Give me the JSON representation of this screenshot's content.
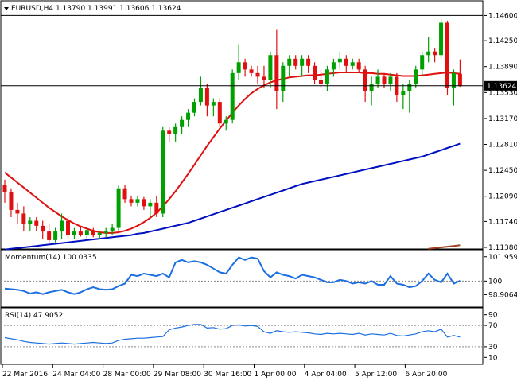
{
  "chart_data": [
    {
      "type": "candlestick",
      "symbol_header": "EURUSD,H4  1.13790 1.13991 1.13606 1.13624",
      "current_price_label": "1.13624",
      "current_price": 1.13624,
      "top_line_price": 1.146,
      "ylim": [
        1.1138,
        1.1466
      ],
      "y_ticks": [
        {
          "value": 1.146,
          "label": "1.14600"
        },
        {
          "value": 1.1425,
          "label": "1.14250"
        },
        {
          "value": 1.1389,
          "label": "1.13890"
        },
        {
          "value": 1.1353,
          "label": "1.13530"
        },
        {
          "value": 1.1317,
          "label": "1.13170"
        },
        {
          "value": 1.1281,
          "label": "1.12810"
        },
        {
          "value": 1.1245,
          "label": "1.12450"
        },
        {
          "value": 1.1209,
          "label": "1.12090"
        },
        {
          "value": 1.1174,
          "label": "1.11740"
        },
        {
          "value": 1.1138,
          "label": "1.11380"
        }
      ],
      "x_labels": [
        "22 Mar 2016",
        "24 Mar 04:00",
        "28 Mar 00:00",
        "29 Mar 08:00",
        "30 Mar 16:00",
        "1 Apr 00:00",
        "4 Apr 04:00",
        "5 Apr 12:00",
        "6 Apr 20:00"
      ],
      "candles": [
        [
          1.1225,
          1.1232,
          1.12,
          1.1215
        ],
        [
          1.1215,
          1.122,
          1.118,
          1.119
        ],
        [
          1.119,
          1.12,
          1.117,
          1.1185
        ],
        [
          1.1185,
          1.1195,
          1.116,
          1.117
        ],
        [
          1.117,
          1.118,
          1.116,
          1.1175
        ],
        [
          1.1175,
          1.118,
          1.116,
          1.1168
        ],
        [
          1.1168,
          1.1175,
          1.115,
          1.116
        ],
        [
          1.116,
          1.117,
          1.1145,
          1.1148
        ],
        [
          1.1148,
          1.1165,
          1.1145,
          1.116
        ],
        [
          1.116,
          1.1185,
          1.115,
          1.1175
        ],
        [
          1.1175,
          1.118,
          1.115,
          1.1155
        ],
        [
          1.1155,
          1.1165,
          1.115,
          1.116
        ],
        [
          1.116,
          1.1168,
          1.1153,
          1.1155
        ],
        [
          1.1155,
          1.1165,
          1.115,
          1.1162
        ],
        [
          1.1162,
          1.1165,
          1.1152,
          1.1155
        ],
        [
          1.1155,
          1.116,
          1.115,
          1.1158
        ],
        [
          1.1158,
          1.1165,
          1.1152,
          1.116
        ],
        [
          1.116,
          1.117,
          1.1155,
          1.1165
        ],
        [
          1.1165,
          1.1225,
          1.116,
          1.122
        ],
        [
          1.122,
          1.1225,
          1.12,
          1.1205
        ],
        [
          1.1205,
          1.121,
          1.1195,
          1.12
        ],
        [
          1.12,
          1.121,
          1.1195,
          1.1205
        ],
        [
          1.1205,
          1.1208,
          1.119,
          1.1195
        ],
        [
          1.1195,
          1.1205,
          1.118,
          1.12
        ],
        [
          1.12,
          1.121,
          1.118,
          1.1185
        ],
        [
          1.1185,
          1.1305,
          1.118,
          1.13
        ],
        [
          1.13,
          1.1305,
          1.1285,
          1.1295
        ],
        [
          1.1295,
          1.131,
          1.1285,
          1.1305
        ],
        [
          1.1305,
          1.132,
          1.1295,
          1.1315
        ],
        [
          1.1315,
          1.133,
          1.1305,
          1.1325
        ],
        [
          1.1325,
          1.1345,
          1.132,
          1.134
        ],
        [
          1.134,
          1.1375,
          1.1335,
          1.136
        ],
        [
          1.136,
          1.1365,
          1.132,
          1.1335
        ],
        [
          1.1335,
          1.1345,
          1.132,
          1.134
        ],
        [
          1.134,
          1.1345,
          1.1305,
          1.131
        ],
        [
          1.131,
          1.132,
          1.13,
          1.1315
        ],
        [
          1.1315,
          1.1385,
          1.131,
          1.138
        ],
        [
          1.138,
          1.142,
          1.137,
          1.1395
        ],
        [
          1.1395,
          1.14,
          1.1375,
          1.1385
        ],
        [
          1.1385,
          1.139,
          1.1375,
          1.138
        ],
        [
          1.138,
          1.139,
          1.1365,
          1.1375
        ],
        [
          1.1375,
          1.139,
          1.136,
          1.137
        ],
        [
          1.137,
          1.141,
          1.136,
          1.1405
        ],
        [
          1.1405,
          1.144,
          1.133,
          1.1355
        ],
        [
          1.1355,
          1.1395,
          1.134,
          1.139
        ],
        [
          1.139,
          1.1405,
          1.1375,
          1.14
        ],
        [
          1.14,
          1.1405,
          1.1385,
          1.139
        ],
        [
          1.139,
          1.1405,
          1.1375,
          1.14
        ],
        [
          1.14,
          1.1405,
          1.138,
          1.139
        ],
        [
          1.139,
          1.1395,
          1.1365,
          1.137
        ],
        [
          1.137,
          1.1385,
          1.136,
          1.1365
        ],
        [
          1.1365,
          1.139,
          1.1355,
          1.1385
        ],
        [
          1.1385,
          1.14,
          1.1375,
          1.1395
        ],
        [
          1.1395,
          1.141,
          1.1385,
          1.14
        ],
        [
          1.14,
          1.1405,
          1.138,
          1.139
        ],
        [
          1.139,
          1.14,
          1.1385,
          1.1395
        ],
        [
          1.1395,
          1.14,
          1.138,
          1.1385
        ],
        [
          1.1385,
          1.139,
          1.134,
          1.1355
        ],
        [
          1.1355,
          1.1375,
          1.1335,
          1.1365
        ],
        [
          1.1365,
          1.1385,
          1.136,
          1.1375
        ],
        [
          1.1375,
          1.138,
          1.136,
          1.1365
        ],
        [
          1.1365,
          1.138,
          1.1355,
          1.1375
        ],
        [
          1.1375,
          1.138,
          1.134,
          1.135
        ],
        [
          1.135,
          1.1365,
          1.133,
          1.1355
        ],
        [
          1.1355,
          1.137,
          1.1325,
          1.1365
        ],
        [
          1.1365,
          1.139,
          1.136,
          1.1385
        ],
        [
          1.1385,
          1.141,
          1.1375,
          1.1405
        ],
        [
          1.1405,
          1.143,
          1.1395,
          1.141
        ],
        [
          1.141,
          1.1415,
          1.1395,
          1.1405
        ],
        [
          1.1405,
          1.1455,
          1.14,
          1.145
        ],
        [
          1.145,
          1.1452,
          1.135,
          1.136
        ],
        [
          1.136,
          1.1385,
          1.1335,
          1.138
        ],
        [
          1.1379,
          1.1399,
          1.1361,
          1.1362
        ]
      ],
      "ma_red": [
        1.1242,
        1.1235,
        1.1228,
        1.1221,
        1.1214,
        1.1207,
        1.12,
        1.1193,
        1.1187,
        1.1181,
        1.1176,
        1.1171,
        1.1167,
        1.1164,
        1.1161,
        1.1159,
        1.1158,
        1.1158,
        1.1159,
        1.1161,
        1.1164,
        1.1168,
        1.1173,
        1.1179,
        1.1186,
        1.1195,
        1.1205,
        1.1216,
        1.1228,
        1.124,
        1.1253,
        1.1266,
        1.1279,
        1.1291,
        1.1303,
        1.1314,
        1.1325,
        1.1335,
        1.1344,
        1.1352,
        1.1358,
        1.1363,
        1.1367,
        1.137,
        1.1372,
        1.1374,
        1.1375,
        1.1376,
        1.1377,
        1.1377,
        1.1378,
        1.1379,
        1.138,
        1.1381,
        1.1381,
        1.1381,
        1.1381,
        1.138,
        1.138,
        1.1379,
        1.1379,
        1.1378,
        1.1377,
        1.1376,
        1.1376,
        1.1376,
        1.1377,
        1.1378,
        1.1379,
        1.138,
        1.1381,
        1.138,
        1.1379
      ],
      "ma_blue": [
        1.1135,
        1.1136,
        1.1137,
        1.1138,
        1.1139,
        1.114,
        1.1141,
        1.1142,
        1.1143,
        1.1144,
        1.1145,
        1.1146,
        1.1147,
        1.1148,
        1.1149,
        1.115,
        1.1151,
        1.1152,
        1.1153,
        1.1154,
        1.1155,
        1.1157,
        1.1158,
        1.116,
        1.1162,
        1.1164,
        1.1166,
        1.1168,
        1.117,
        1.1172,
        1.1175,
        1.1178,
        1.1181,
        1.1184,
        1.1187,
        1.119,
        1.1193,
        1.1196,
        1.1199,
        1.1202,
        1.1205,
        1.1208,
        1.1211,
        1.1214,
        1.1217,
        1.122,
        1.1223,
        1.1226,
        1.1228,
        1.123,
        1.1232,
        1.1234,
        1.1236,
        1.1238,
        1.124,
        1.1242,
        1.1244,
        1.1246,
        1.1248,
        1.125,
        1.1252,
        1.1254,
        1.1256,
        1.1258,
        1.126,
        1.1262,
        1.1264,
        1.1267,
        1.127,
        1.1273,
        1.1276,
        1.1279,
        1.1282
      ],
      "ma_brown": [
        null,
        null,
        null,
        null,
        null,
        null,
        null,
        null,
        null,
        null,
        null,
        null,
        null,
        null,
        null,
        null,
        null,
        null,
        null,
        null,
        null,
        null,
        null,
        null,
        null,
        null,
        null,
        null,
        null,
        null,
        null,
        null,
        null,
        null,
        null,
        null,
        null,
        null,
        null,
        null,
        null,
        null,
        null,
        null,
        null,
        null,
        null,
        null,
        null,
        null,
        null,
        null,
        null,
        null,
        null,
        null,
        null,
        null,
        null,
        null,
        null,
        null,
        null,
        null,
        null,
        null,
        null,
        1.1136,
        1.1137,
        1.1138,
        1.1139,
        1.114,
        1.1141
      ],
      "colors": {
        "up": "#00a000",
        "down": "#e01010",
        "ma_red": "#e01010",
        "ma_blue": "#0010c0",
        "ma_brown": "#a04020"
      }
    },
    {
      "type": "line",
      "name": "Momentum(14) 100.0335",
      "ylim": [
        98.1,
        102.2
      ],
      "y_ticks": [
        {
          "value": 101.9595,
          "label": "101.9595"
        },
        {
          "value": 100,
          "label": "100"
        },
        {
          "value": 98.9064,
          "label": "98.9064"
        }
      ],
      "reference_level": 100,
      "values": [
        99.4,
        99.35,
        99.3,
        99.2,
        99.0,
        99.1,
        98.95,
        99.1,
        99.2,
        99.3,
        99.1,
        98.95,
        99.1,
        99.35,
        99.5,
        99.35,
        99.3,
        99.35,
        99.6,
        99.8,
        100.5,
        100.4,
        100.6,
        100.5,
        100.4,
        100.6,
        100.3,
        101.5,
        101.7,
        101.5,
        101.6,
        101.5,
        101.3,
        101.0,
        100.7,
        100.6,
        101.3,
        101.9,
        101.7,
        101.9,
        101.8,
        100.8,
        100.3,
        100.7,
        100.5,
        100.4,
        100.2,
        100.5,
        100.4,
        100.3,
        100.1,
        99.9,
        99.9,
        100.1,
        100.0,
        99.8,
        99.9,
        99.8,
        100.0,
        99.7,
        99.7,
        100.4,
        99.8,
        99.7,
        99.5,
        99.6,
        100.0,
        100.6,
        100.1,
        99.9,
        100.6,
        99.8,
        100.03
      ],
      "color": "#1c6fe0"
    },
    {
      "type": "line",
      "name": "RSI(14) 47.9052",
      "ylim": [
        0,
        100
      ],
      "y_ticks": [
        {
          "value": 70,
          "label": "70"
        },
        {
          "value": 30,
          "label": "30"
        }
      ],
      "extra_ticks": [
        {
          "value": 90,
          "label": "90"
        },
        {
          "value": 10,
          "label": "10"
        }
      ],
      "reference_levels": [
        70,
        30
      ],
      "values": [
        47,
        45,
        43,
        40,
        38,
        37,
        36,
        35,
        36,
        37,
        36,
        35,
        36,
        37,
        38,
        37,
        36,
        37,
        42,
        44,
        45,
        46,
        46,
        47,
        48,
        49,
        62,
        65,
        67,
        70,
        72,
        72,
        65,
        66,
        63,
        64,
        70,
        71,
        69,
        70,
        68,
        58,
        55,
        60,
        58,
        57,
        58,
        57,
        56,
        54,
        53,
        55,
        54,
        55,
        54,
        53,
        55,
        52,
        54,
        53,
        52,
        55,
        51,
        50,
        52,
        54,
        58,
        60,
        58,
        63,
        48,
        51,
        48
      ],
      "color": "#1c6fe0"
    }
  ]
}
